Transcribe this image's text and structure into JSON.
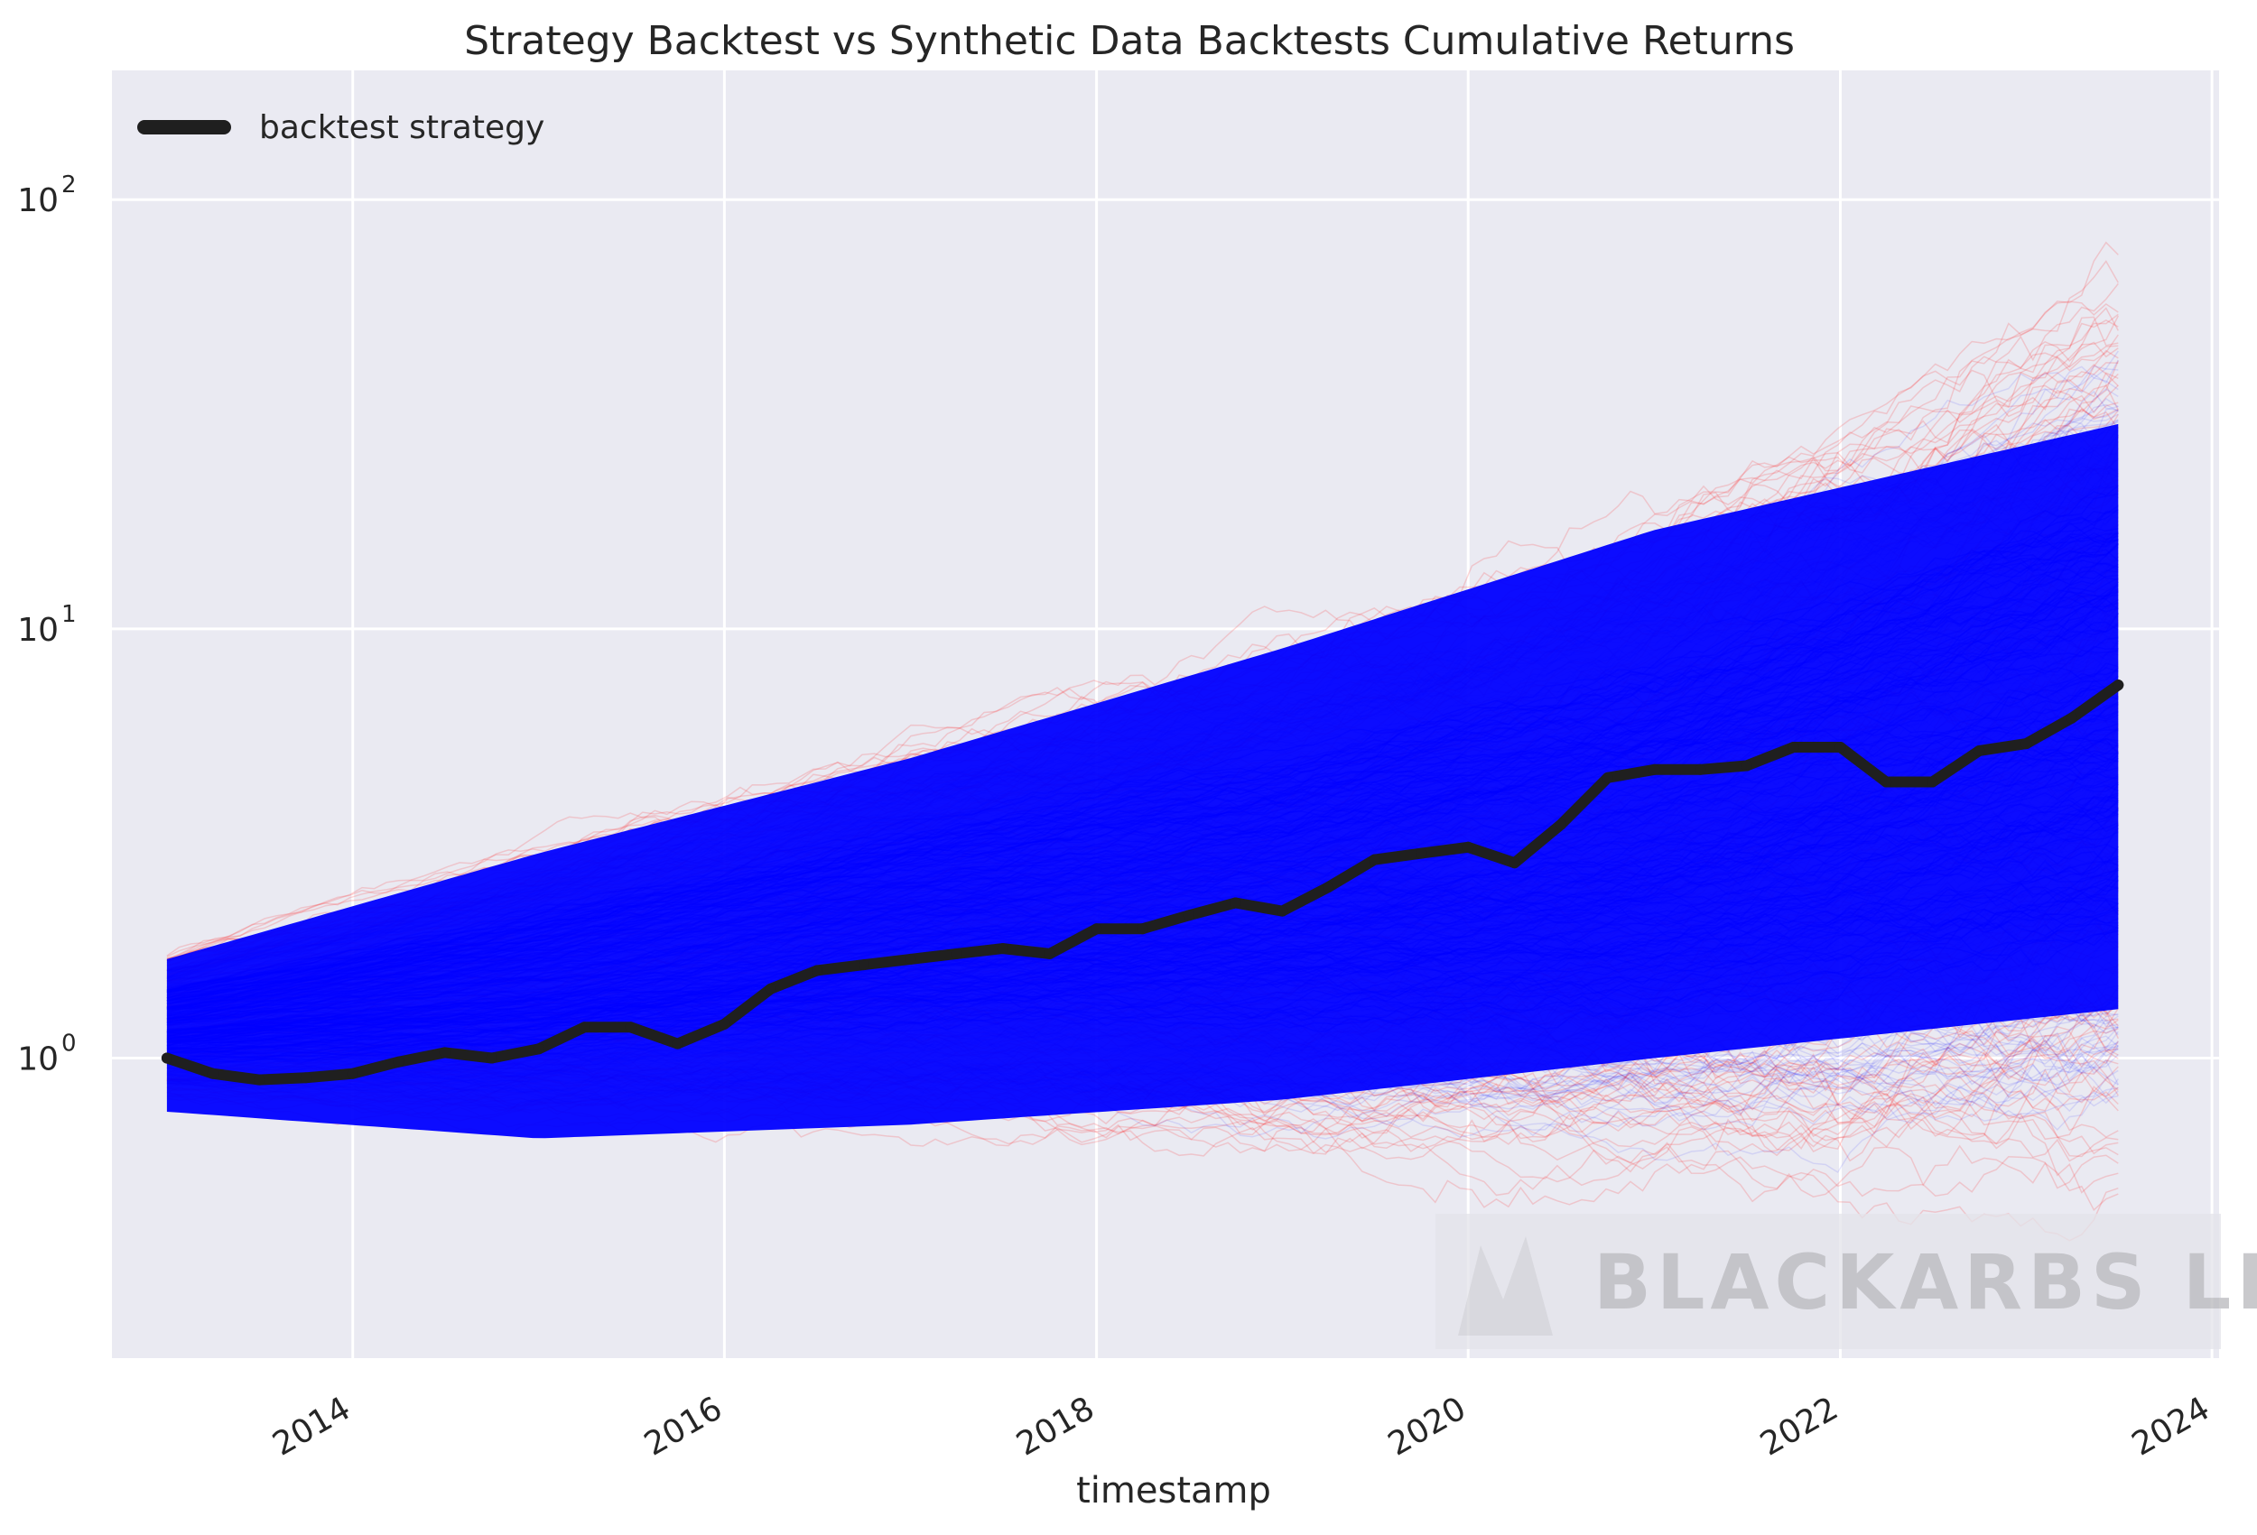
{
  "chart_data": {
    "type": "line",
    "title": "Strategy Backtest vs Synthetic Data Backtests Cumulative Returns",
    "xlabel": "timestamp",
    "ylabel": "",
    "yscale": "log",
    "xlim": [
      "2012-09-15",
      "2024-01-15"
    ],
    "ylim": [
      0.2,
      200
    ],
    "x_ticks": [
      "2014",
      "2016",
      "2018",
      "2020",
      "2022",
      "2024"
    ],
    "y_ticks": [
      {
        "base": "10",
        "exp": "0",
        "value": 1
      },
      {
        "base": "10",
        "exp": "1",
        "value": 10
      },
      {
        "base": "10",
        "exp": "2",
        "value": 100
      }
    ],
    "grid": true,
    "legend": {
      "placement": "top-left",
      "entries": [
        "backtest strategy"
      ]
    },
    "colors": {
      "background": "#eaeaf2",
      "grid": "#ffffff",
      "backtest": "#1f1f1f",
      "synthetic_a": "#0000ff",
      "synthetic_b": "#ff2020"
    },
    "watermark": "BLACKARBS LLC",
    "series": [
      {
        "name": "backtest strategy",
        "points": [
          [
            "2013-01-01",
            1.0
          ],
          [
            "2013-04-01",
            0.92
          ],
          [
            "2013-07-01",
            0.89
          ],
          [
            "2013-10-01",
            0.9
          ],
          [
            "2014-01-01",
            0.92
          ],
          [
            "2014-04-01",
            0.98
          ],
          [
            "2014-07-01",
            1.03
          ],
          [
            "2014-10-01",
            1.0
          ],
          [
            "2015-01-01",
            1.05
          ],
          [
            "2015-04-01",
            1.18
          ],
          [
            "2015-07-01",
            1.18
          ],
          [
            "2015-10-01",
            1.08
          ],
          [
            "2016-01-01",
            1.2
          ],
          [
            "2016-04-01",
            1.45
          ],
          [
            "2016-07-01",
            1.6
          ],
          [
            "2016-10-01",
            1.65
          ],
          [
            "2017-01-01",
            1.7
          ],
          [
            "2017-04-01",
            1.75
          ],
          [
            "2017-07-01",
            1.8
          ],
          [
            "2017-10-01",
            1.75
          ],
          [
            "2018-01-01",
            2.0
          ],
          [
            "2018-04-01",
            2.0
          ],
          [
            "2018-07-01",
            2.15
          ],
          [
            "2018-10-01",
            2.3
          ],
          [
            "2019-01-01",
            2.2
          ],
          [
            "2019-04-01",
            2.5
          ],
          [
            "2019-07-01",
            2.9
          ],
          [
            "2019-10-01",
            3.0
          ],
          [
            "2020-01-01",
            3.1
          ],
          [
            "2020-04-01",
            2.85
          ],
          [
            "2020-07-01",
            3.5
          ],
          [
            "2020-10-01",
            4.5
          ],
          [
            "2021-01-01",
            4.7
          ],
          [
            "2021-04-01",
            4.7
          ],
          [
            "2021-07-01",
            4.8
          ],
          [
            "2021-10-01",
            5.3
          ],
          [
            "2022-01-01",
            5.3
          ],
          [
            "2022-04-01",
            4.4
          ],
          [
            "2022-07-01",
            4.4
          ],
          [
            "2022-10-01",
            5.2
          ],
          [
            "2023-01-01",
            5.4
          ],
          [
            "2023-04-01",
            6.2
          ],
          [
            "2023-07-01",
            7.4
          ]
        ]
      }
    ],
    "synthetic_envelope": {
      "description_color": "blue and red",
      "x": [
        "2013-01-01",
        "2015-01-01",
        "2017-01-01",
        "2019-01-01",
        "2021-01-01",
        "2023-07-01"
      ],
      "upper": [
        2.0,
        4.0,
        8.0,
        15.0,
        35.0,
        150
      ],
      "lower": [
        0.7,
        0.55,
        0.5,
        0.4,
        0.3,
        0.25
      ],
      "core_upper": [
        1.7,
        3.0,
        5.0,
        9.0,
        17.0,
        30.0
      ],
      "core_lower": [
        0.75,
        0.65,
        0.7,
        0.8,
        1.0,
        1.3
      ]
    }
  }
}
